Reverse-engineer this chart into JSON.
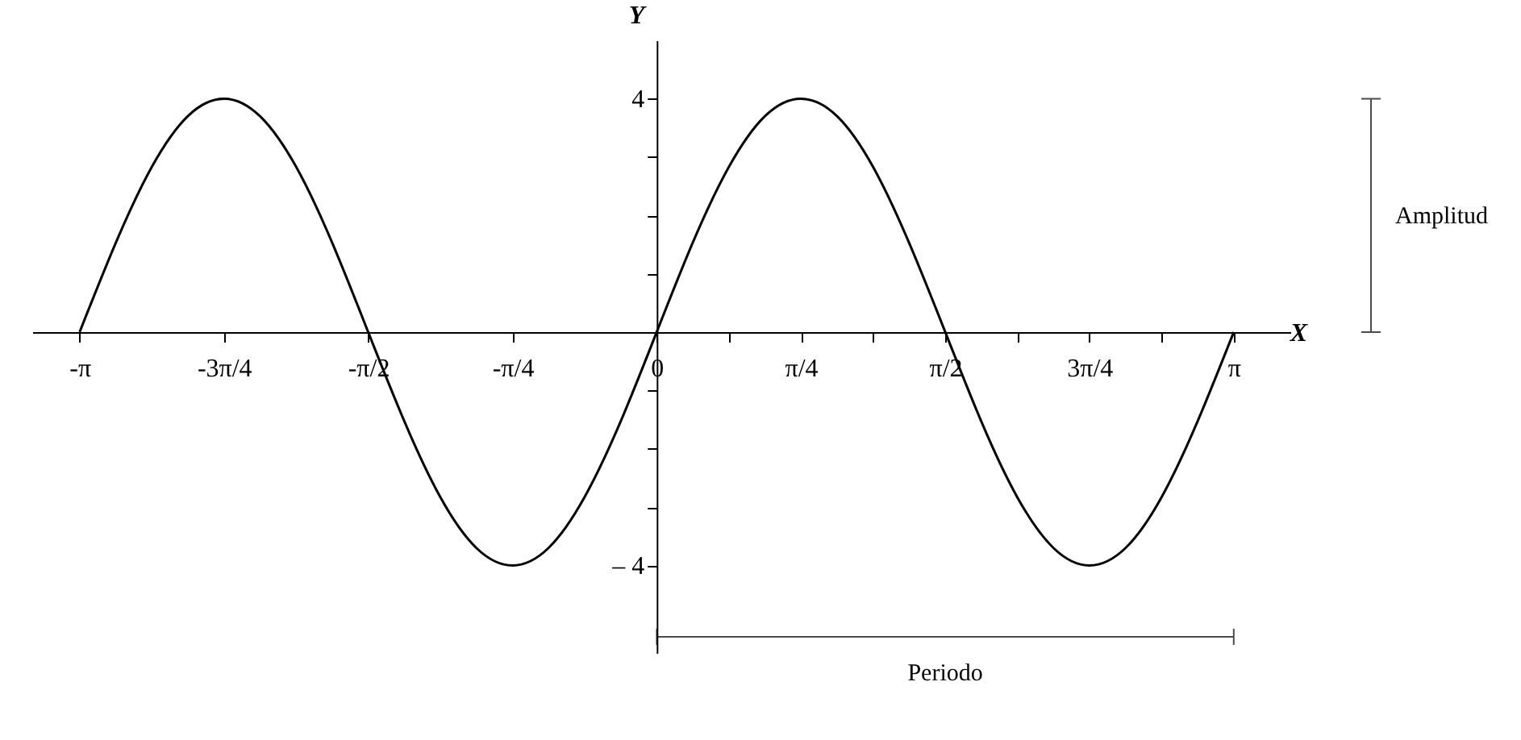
{
  "chart_data": {
    "type": "line",
    "xlabel": "X",
    "ylabel": "Y",
    "x": [
      -3.142,
      -2.945,
      -2.749,
      -2.553,
      -2.356,
      -2.16,
      -1.963,
      -1.767,
      -1.571,
      -1.374,
      -1.178,
      -0.982,
      -0.785,
      -0.589,
      -0.393,
      -0.196,
      0,
      0.196,
      0.393,
      0.589,
      0.785,
      0.982,
      1.178,
      1.374,
      1.571,
      1.767,
      1.963,
      2.16,
      2.356,
      2.553,
      2.749,
      2.945,
      3.142
    ],
    "series": [
      {
        "color": "#000000",
        "values": [
          0,
          1.53,
          2.83,
          3.7,
          4,
          3.7,
          2.83,
          1.53,
          0,
          -1.53,
          -2.83,
          -3.7,
          -4,
          -3.7,
          -2.83,
          -1.53,
          0,
          1.53,
          2.83,
          3.7,
          4,
          3.7,
          2.83,
          1.53,
          0,
          -1.53,
          -2.83,
          -3.7,
          -4,
          -3.7,
          -2.83,
          -1.53,
          0
        ]
      }
    ],
    "xlim": [
      -3.4,
      3.45
    ],
    "ylim": [
      -5.5,
      5
    ],
    "xticks": [
      {
        "value": -3.142,
        "label": "-π"
      },
      {
        "value": -2.356,
        "label": "-3π/4"
      },
      {
        "value": -1.571,
        "label": "-π/2"
      },
      {
        "value": -0.785,
        "label": "-π/4"
      },
      0,
      {
        "value": 0.393,
        "label": null
      },
      {
        "value": 0.785,
        "label": "π/4"
      },
      {
        "value": 1.178,
        "label": null
      },
      {
        "value": 1.571,
        "label": "π/2"
      },
      {
        "value": 1.963,
        "label": null
      },
      {
        "value": 2.356,
        "label": "3π/4"
      },
      {
        "value": 2.749,
        "label": null
      },
      {
        "value": 3.142,
        "label": "π"
      }
    ],
    "yticks": [
      {
        "value": -4,
        "label": "– 4"
      },
      {
        "value": -3,
        "label": null
      },
      {
        "value": -2,
        "label": null
      },
      {
        "value": -1,
        "label": null
      },
      {
        "value": 1,
        "label": null
      },
      {
        "value": 2,
        "label": null
      },
      {
        "value": 3,
        "label": null
      },
      4
    ],
    "annotations": [
      "Amplitud",
      "Periodo"
    ],
    "grid": false,
    "legend": false,
    "marker": "none",
    "line_style": "solid"
  }
}
